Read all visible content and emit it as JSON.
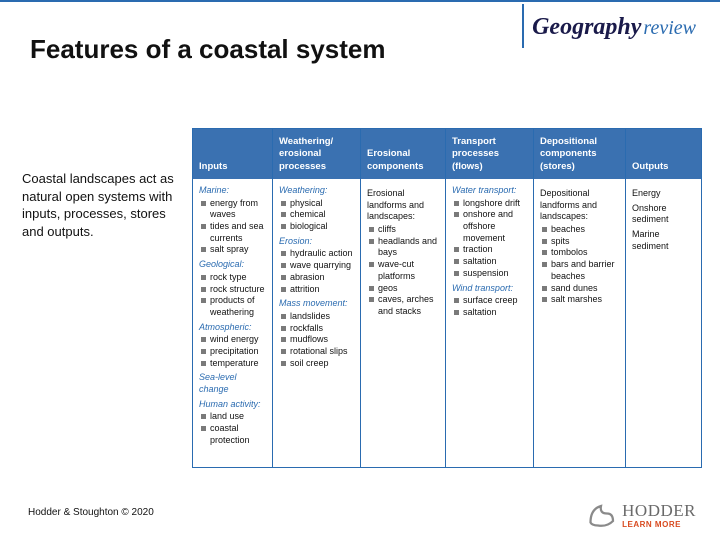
{
  "brand": {
    "word1": "Geography",
    "word2": "review"
  },
  "title": "Features of a coastal system",
  "intro": "Coastal landscapes act as natural open systems with inputs, processes, stores and outputs.",
  "footer": {
    "left": "Hodder & Stoughton © 2020",
    "logo_name": "HODDER",
    "logo_sub": "LEARN MORE"
  },
  "colors": {
    "accent": "#2a6bb0",
    "header_bg": "#3a71b1",
    "bullet": "#7a7a7a",
    "logo_orange": "#d84a1f"
  },
  "columns": [
    {
      "header": "Inputs",
      "groups": [
        {
          "label": "Marine:",
          "items": [
            "energy from waves",
            "tides and sea currents",
            "salt spray"
          ]
        },
        {
          "label": "Geological:",
          "items": [
            "rock type",
            "rock structure",
            "products of weathering"
          ]
        },
        {
          "label": "Atmospheric:",
          "items": [
            "wind energy",
            "precipitation",
            "temperature"
          ]
        },
        {
          "label": "Sea-level change",
          "items": []
        },
        {
          "label": "Human activity:",
          "items": [
            "land use",
            "coastal protection"
          ]
        }
      ]
    },
    {
      "header": "Weathering/ erosional processes",
      "groups": [
        {
          "label": "Weathering:",
          "items": [
            "physical",
            "chemical",
            "biological"
          ]
        },
        {
          "label": "Erosion:",
          "items": [
            "hydraulic action",
            "wave quarrying",
            "abrasion",
            "attrition"
          ]
        },
        {
          "label": "Mass movement:",
          "items": [
            "landslides",
            "rockfalls",
            "mudflows",
            "rotational slips",
            "soil creep"
          ]
        }
      ]
    },
    {
      "header": "Erosional components",
      "groups": [
        {
          "label": "Erosional landforms and landscapes:",
          "label_plain": true,
          "items": [
            "cliffs",
            "headlands and bays",
            "wave-cut platforms",
            "geos",
            "caves, arches and stacks"
          ]
        }
      ]
    },
    {
      "header": "Transport processes (flows)",
      "groups": [
        {
          "label": "Water transport:",
          "items": [
            "longshore drift",
            "onshore and offshore movement",
            "traction",
            "saltation",
            "suspension"
          ]
        },
        {
          "label": "Wind transport:",
          "items": [
            "surface creep",
            "saltation"
          ]
        }
      ]
    },
    {
      "header": "Depositional components (stores)",
      "groups": [
        {
          "label": "Depositional landforms and landscapes:",
          "label_plain": true,
          "items": [
            "beaches",
            "spits",
            "tombolos",
            "bars and barrier beaches",
            "sand dunes",
            "salt marshes"
          ]
        }
      ]
    },
    {
      "header": "Outputs",
      "groups": [
        {
          "label": "Energy",
          "label_plain": true,
          "items": []
        },
        {
          "label": "Onshore sediment",
          "label_plain": true,
          "items": []
        },
        {
          "label": "Marine sediment",
          "label_plain": true,
          "items": []
        }
      ]
    }
  ]
}
